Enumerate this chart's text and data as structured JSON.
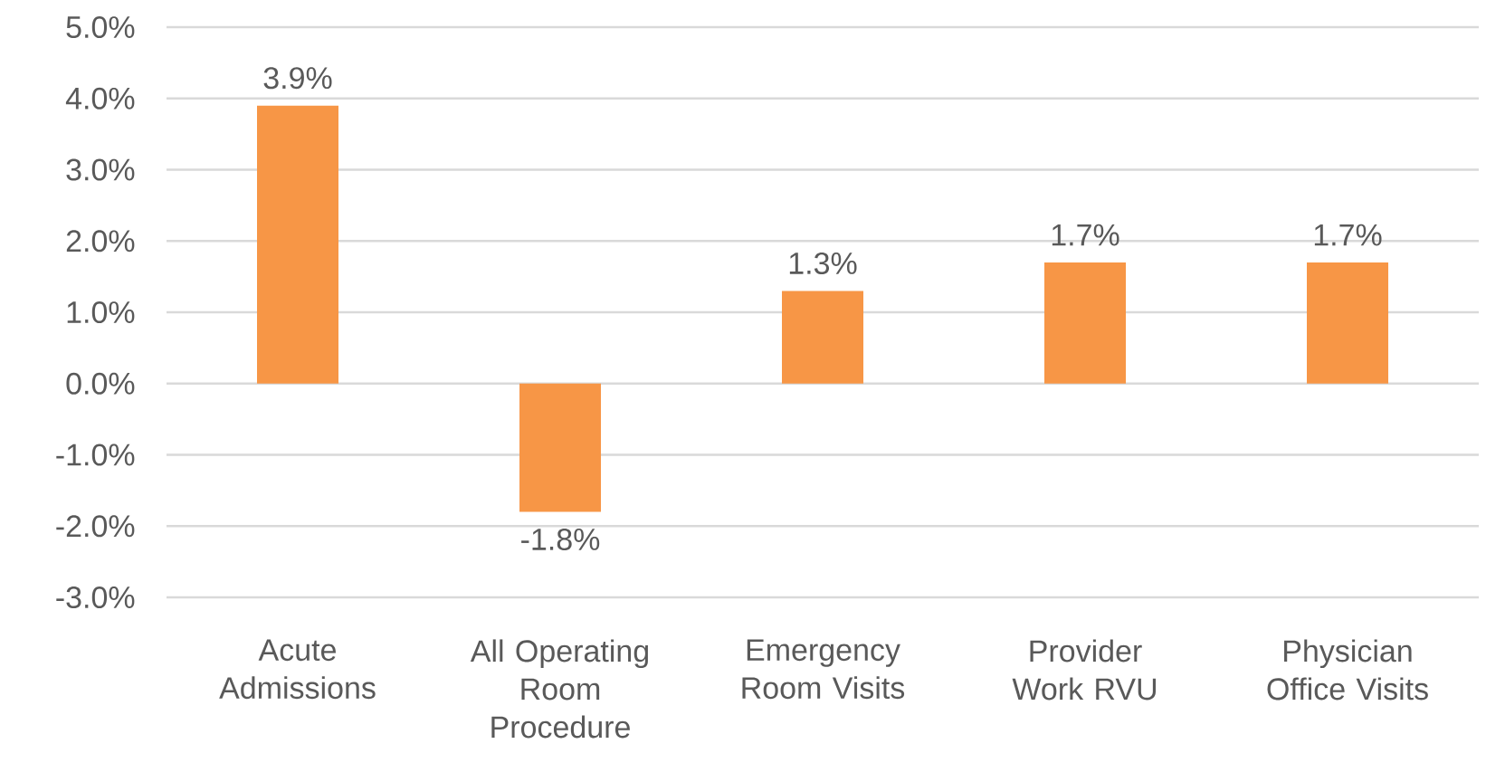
{
  "chart_data": {
    "type": "bar",
    "categories": [
      "Acute Admissions",
      "All Operating Room Procedure",
      "Emergency Room Visits",
      "Provider Work RVU",
      "Physician Office Visits"
    ],
    "values": [
      3.9,
      -1.8,
      1.3,
      1.7,
      1.7
    ],
    "value_labels": [
      "3.9%",
      "-1.8%",
      "1.3%",
      "1.7%",
      "1.7%"
    ],
    "color": "#f79646",
    "ylim": [
      -3,
      5
    ],
    "yticks": [
      {
        "value": -3,
        "label": "-3.0%"
      },
      {
        "value": -2,
        "label": "-2.0%"
      },
      {
        "value": -1,
        "label": "-1.0%"
      },
      {
        "value": 0,
        "label": "0.0%"
      },
      {
        "value": 1,
        "label": "1.0%"
      },
      {
        "value": 2,
        "label": "2.0%"
      },
      {
        "value": 3,
        "label": "3.0%"
      },
      {
        "value": 4,
        "label": "4.0%"
      },
      {
        "value": 5,
        "label": "5.0%"
      }
    ],
    "grid": "y"
  }
}
